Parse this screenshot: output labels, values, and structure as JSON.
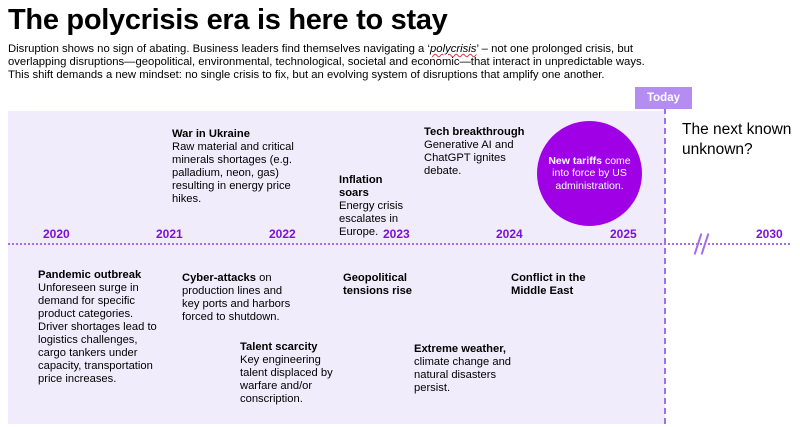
{
  "title": "The polycrisis era is here to stay",
  "intro": {
    "line1_a": "Disruption shows no sign of abating. Business leaders find themselves navigating a ‘",
    "line1_q": "polycrisis",
    "line1_b": "’ – not one prolonged crisis, but",
    "line2": "overlapping disruptions—geopolitical, environmental, technological, societal and economic—that interact in unpredictable ways.",
    "line3": "This shift demands a new mindset: no single crisis to fix, but an evolving system of disruptions that amplify one another."
  },
  "today_label": "Today",
  "next_label": "The next known unknown?",
  "years": [
    "2020",
    "2021",
    "2022",
    "2023",
    "2024",
    "2025",
    "2030"
  ],
  "events_above": [
    {
      "title": "War in Ukraine",
      "body": "Raw material and critical minerals shortages (e.g. palladium, neon, gas) resulting in energy price hikes."
    },
    {
      "title": "Inflation soars",
      "body": "Energy crisis escalates in Europe."
    },
    {
      "title": "Tech breakthrough",
      "body": "Generative AI and ChatGPT ignites debate."
    }
  ],
  "highlight": {
    "title": "New tariffs",
    "body": "come into force by US administration."
  },
  "events_below": [
    {
      "title": "Pandemic outbreak",
      "body": "Unforeseen surge in demand for specific product categories. Driver shortages lead to logistics challenges, cargo tankers under capacity, transportation price increases."
    },
    {
      "title": "Cyber-attacks",
      "body": "on production lines and key ports and harbors forced to shutdown."
    },
    {
      "title": "Talent scarcity",
      "body": "Key engineering talent displaced by warfare and/or conscription."
    },
    {
      "title": "Geopolitical tensions rise",
      "body": ""
    },
    {
      "title": "Extreme weather,",
      "body": "climate change and natural disasters persist."
    },
    {
      "title": "Conflict in the Middle East",
      "body": ""
    }
  ],
  "colors": {
    "accent": "#7d11d8",
    "panel": "#f1ecfb",
    "today_tab": "#b48cf2",
    "circle": "#a000e6"
  }
}
